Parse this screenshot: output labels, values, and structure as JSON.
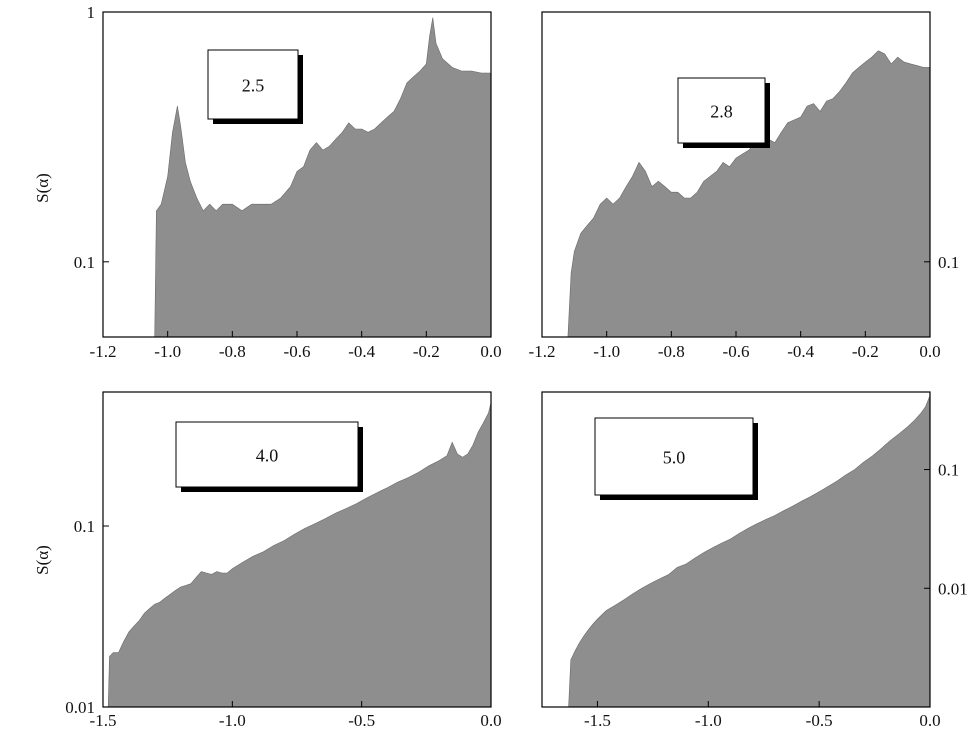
{
  "colors": {
    "fill": "#8e8e8e",
    "frame": "#000000",
    "background": "#ffffff"
  },
  "chart_data": [
    {
      "type": "area",
      "label": "2.5",
      "ylabel": "S(α)",
      "yscale": "log",
      "xlim": [
        -1.2,
        0.0
      ],
      "ylim": [
        0.05,
        1.0
      ],
      "xticks": [
        "-1.2",
        "-1.0",
        "-0.8",
        "-0.6",
        "-0.4",
        "-0.2",
        "0.0"
      ],
      "yticks": [
        {
          "value": 1.0,
          "label": "1"
        },
        {
          "value": 0.1,
          "label": "0.1"
        }
      ],
      "points": [
        [
          -1.2,
          0.05
        ],
        [
          -1.04,
          0.05
        ],
        [
          -1.035,
          0.16
        ],
        [
          -1.02,
          0.17
        ],
        [
          -1.0,
          0.22
        ],
        [
          -0.985,
          0.33
        ],
        [
          -0.97,
          0.42
        ],
        [
          -0.96,
          0.35
        ],
        [
          -0.945,
          0.25
        ],
        [
          -0.93,
          0.21
        ],
        [
          -0.91,
          0.18
        ],
        [
          -0.89,
          0.16
        ],
        [
          -0.87,
          0.17
        ],
        [
          -0.85,
          0.16
        ],
        [
          -0.83,
          0.17
        ],
        [
          -0.8,
          0.17
        ],
        [
          -0.77,
          0.16
        ],
        [
          -0.74,
          0.17
        ],
        [
          -0.71,
          0.17
        ],
        [
          -0.68,
          0.17
        ],
        [
          -0.65,
          0.18
        ],
        [
          -0.62,
          0.2
        ],
        [
          -0.6,
          0.23
        ],
        [
          -0.58,
          0.24
        ],
        [
          -0.56,
          0.28
        ],
        [
          -0.54,
          0.3
        ],
        [
          -0.52,
          0.28
        ],
        [
          -0.5,
          0.29
        ],
        [
          -0.48,
          0.31
        ],
        [
          -0.46,
          0.33
        ],
        [
          -0.44,
          0.36
        ],
        [
          -0.42,
          0.34
        ],
        [
          -0.4,
          0.34
        ],
        [
          -0.38,
          0.33
        ],
        [
          -0.36,
          0.34
        ],
        [
          -0.34,
          0.36
        ],
        [
          -0.32,
          0.38
        ],
        [
          -0.3,
          0.4
        ],
        [
          -0.28,
          0.45
        ],
        [
          -0.26,
          0.52
        ],
        [
          -0.24,
          0.55
        ],
        [
          -0.22,
          0.58
        ],
        [
          -0.2,
          0.62
        ],
        [
          -0.19,
          0.8
        ],
        [
          -0.18,
          0.95
        ],
        [
          -0.17,
          0.75
        ],
        [
          -0.15,
          0.65
        ],
        [
          -0.12,
          0.6
        ],
        [
          -0.09,
          0.58
        ],
        [
          -0.06,
          0.58
        ],
        [
          -0.03,
          0.57
        ],
        [
          0.0,
          0.57
        ]
      ]
    },
    {
      "type": "area",
      "label": "2.8",
      "ylabel": "",
      "yscale": "log",
      "xlim": [
        -1.2,
        0.0
      ],
      "ylim": [
        0.05,
        1.0
      ],
      "xticks": [
        "-1.2",
        "-1.0",
        "-0.8",
        "-0.6",
        "-0.4",
        "-0.2",
        "0.0"
      ],
      "yticks": [
        {
          "value": 0.1,
          "label": "0.1"
        }
      ],
      "points": [
        [
          -1.2,
          0.05
        ],
        [
          -1.12,
          0.05
        ],
        [
          -1.11,
          0.09
        ],
        [
          -1.1,
          0.11
        ],
        [
          -1.08,
          0.13
        ],
        [
          -1.06,
          0.14
        ],
        [
          -1.04,
          0.15
        ],
        [
          -1.02,
          0.17
        ],
        [
          -1.0,
          0.18
        ],
        [
          -0.98,
          0.17
        ],
        [
          -0.96,
          0.18
        ],
        [
          -0.94,
          0.2
        ],
        [
          -0.92,
          0.22
        ],
        [
          -0.9,
          0.25
        ],
        [
          -0.88,
          0.23
        ],
        [
          -0.86,
          0.2
        ],
        [
          -0.84,
          0.21
        ],
        [
          -0.82,
          0.2
        ],
        [
          -0.8,
          0.19
        ],
        [
          -0.78,
          0.19
        ],
        [
          -0.76,
          0.18
        ],
        [
          -0.74,
          0.18
        ],
        [
          -0.72,
          0.19
        ],
        [
          -0.7,
          0.21
        ],
        [
          -0.68,
          0.22
        ],
        [
          -0.66,
          0.23
        ],
        [
          -0.64,
          0.25
        ],
        [
          -0.62,
          0.24
        ],
        [
          -0.6,
          0.26
        ],
        [
          -0.58,
          0.27
        ],
        [
          -0.56,
          0.28
        ],
        [
          -0.54,
          0.3
        ],
        [
          -0.52,
          0.29
        ],
        [
          -0.5,
          0.31
        ],
        [
          -0.48,
          0.3
        ],
        [
          -0.46,
          0.33
        ],
        [
          -0.44,
          0.36
        ],
        [
          -0.42,
          0.37
        ],
        [
          -0.4,
          0.38
        ],
        [
          -0.38,
          0.42
        ],
        [
          -0.36,
          0.43
        ],
        [
          -0.34,
          0.4
        ],
        [
          -0.32,
          0.44
        ],
        [
          -0.3,
          0.45
        ],
        [
          -0.28,
          0.48
        ],
        [
          -0.26,
          0.52
        ],
        [
          -0.24,
          0.57
        ],
        [
          -0.22,
          0.6
        ],
        [
          -0.2,
          0.63
        ],
        [
          -0.18,
          0.66
        ],
        [
          -0.16,
          0.7
        ],
        [
          -0.14,
          0.68
        ],
        [
          -0.12,
          0.62
        ],
        [
          -0.1,
          0.66
        ],
        [
          -0.08,
          0.63
        ],
        [
          -0.06,
          0.62
        ],
        [
          -0.04,
          0.61
        ],
        [
          -0.02,
          0.6
        ],
        [
          0.0,
          0.6
        ]
      ]
    },
    {
      "type": "area",
      "label": "4.0",
      "ylabel": "S(α)",
      "yscale": "log",
      "xlim": [
        -1.5,
        0.0
      ],
      "ylim": [
        0.01,
        0.55
      ],
      "xticks": [
        "-1.5",
        "-1.0",
        "-0.5",
        "0.0"
      ],
      "yticks": [
        {
          "value": 0.1,
          "label": "0.1"
        },
        {
          "value": 0.01,
          "label": "0.01"
        }
      ],
      "points": [
        [
          -1.5,
          0.01
        ],
        [
          -1.48,
          0.01
        ],
        [
          -1.475,
          0.019
        ],
        [
          -1.46,
          0.02
        ],
        [
          -1.44,
          0.02
        ],
        [
          -1.42,
          0.023
        ],
        [
          -1.4,
          0.026
        ],
        [
          -1.38,
          0.028
        ],
        [
          -1.36,
          0.03
        ],
        [
          -1.34,
          0.033
        ],
        [
          -1.32,
          0.035
        ],
        [
          -1.3,
          0.037
        ],
        [
          -1.28,
          0.038
        ],
        [
          -1.26,
          0.04
        ],
        [
          -1.24,
          0.042
        ],
        [
          -1.22,
          0.044
        ],
        [
          -1.2,
          0.046
        ],
        [
          -1.18,
          0.047
        ],
        [
          -1.16,
          0.048
        ],
        [
          -1.14,
          0.052
        ],
        [
          -1.12,
          0.056
        ],
        [
          -1.1,
          0.055
        ],
        [
          -1.08,
          0.054
        ],
        [
          -1.06,
          0.056
        ],
        [
          -1.04,
          0.055
        ],
        [
          -1.02,
          0.055
        ],
        [
          -1.0,
          0.058
        ],
        [
          -0.96,
          0.063
        ],
        [
          -0.92,
          0.068
        ],
        [
          -0.88,
          0.072
        ],
        [
          -0.84,
          0.078
        ],
        [
          -0.8,
          0.083
        ],
        [
          -0.76,
          0.09
        ],
        [
          -0.72,
          0.097
        ],
        [
          -0.68,
          0.103
        ],
        [
          -0.64,
          0.11
        ],
        [
          -0.6,
          0.118
        ],
        [
          -0.56,
          0.125
        ],
        [
          -0.52,
          0.133
        ],
        [
          -0.48,
          0.143
        ],
        [
          -0.44,
          0.153
        ],
        [
          -0.4,
          0.163
        ],
        [
          -0.36,
          0.175
        ],
        [
          -0.32,
          0.185
        ],
        [
          -0.28,
          0.198
        ],
        [
          -0.24,
          0.215
        ],
        [
          -0.2,
          0.23
        ],
        [
          -0.17,
          0.245
        ],
        [
          -0.15,
          0.29
        ],
        [
          -0.13,
          0.25
        ],
        [
          -0.11,
          0.24
        ],
        [
          -0.09,
          0.25
        ],
        [
          -0.07,
          0.28
        ],
        [
          -0.05,
          0.33
        ],
        [
          -0.03,
          0.37
        ],
        [
          -0.01,
          0.42
        ],
        [
          0.0,
          0.48
        ]
      ]
    },
    {
      "type": "area",
      "label": "5.0",
      "ylabel": "",
      "yscale": "log",
      "xlim": [
        -1.75,
        0.0
      ],
      "ylim": [
        0.001,
        0.45
      ],
      "xticks": [
        "-1.5",
        "-1.0",
        "-0.5",
        "0.0"
      ],
      "xtick_values": [
        -1.5,
        -1.0,
        -0.5,
        0.0
      ],
      "yticks": [
        {
          "value": 0.1,
          "label": "0.1"
        },
        {
          "value": 0.01,
          "label": "0.01"
        }
      ],
      "points": [
        [
          -1.75,
          0.001
        ],
        [
          -1.63,
          0.001
        ],
        [
          -1.62,
          0.0025
        ],
        [
          -1.6,
          0.003
        ],
        [
          -1.58,
          0.0035
        ],
        [
          -1.56,
          0.004
        ],
        [
          -1.54,
          0.0045
        ],
        [
          -1.52,
          0.005
        ],
        [
          -1.5,
          0.0055
        ],
        [
          -1.46,
          0.0065
        ],
        [
          -1.42,
          0.0072
        ],
        [
          -1.38,
          0.008
        ],
        [
          -1.34,
          0.009
        ],
        [
          -1.3,
          0.01
        ],
        [
          -1.26,
          0.011
        ],
        [
          -1.22,
          0.012
        ],
        [
          -1.18,
          0.013
        ],
        [
          -1.14,
          0.015
        ],
        [
          -1.1,
          0.016
        ],
        [
          -1.06,
          0.018
        ],
        [
          -1.02,
          0.02
        ],
        [
          -0.98,
          0.022
        ],
        [
          -0.94,
          0.024
        ],
        [
          -0.9,
          0.026
        ],
        [
          -0.86,
          0.029
        ],
        [
          -0.82,
          0.032
        ],
        [
          -0.78,
          0.035
        ],
        [
          -0.74,
          0.038
        ],
        [
          -0.7,
          0.041
        ],
        [
          -0.66,
          0.045
        ],
        [
          -0.62,
          0.049
        ],
        [
          -0.58,
          0.054
        ],
        [
          -0.54,
          0.059
        ],
        [
          -0.5,
          0.065
        ],
        [
          -0.46,
          0.072
        ],
        [
          -0.42,
          0.08
        ],
        [
          -0.38,
          0.09
        ],
        [
          -0.34,
          0.1
        ],
        [
          -0.3,
          0.115
        ],
        [
          -0.26,
          0.13
        ],
        [
          -0.22,
          0.15
        ],
        [
          -0.18,
          0.175
        ],
        [
          -0.14,
          0.2
        ],
        [
          -0.1,
          0.23
        ],
        [
          -0.07,
          0.26
        ],
        [
          -0.04,
          0.3
        ],
        [
          -0.02,
          0.34
        ],
        [
          0.0,
          0.42
        ]
      ]
    }
  ]
}
